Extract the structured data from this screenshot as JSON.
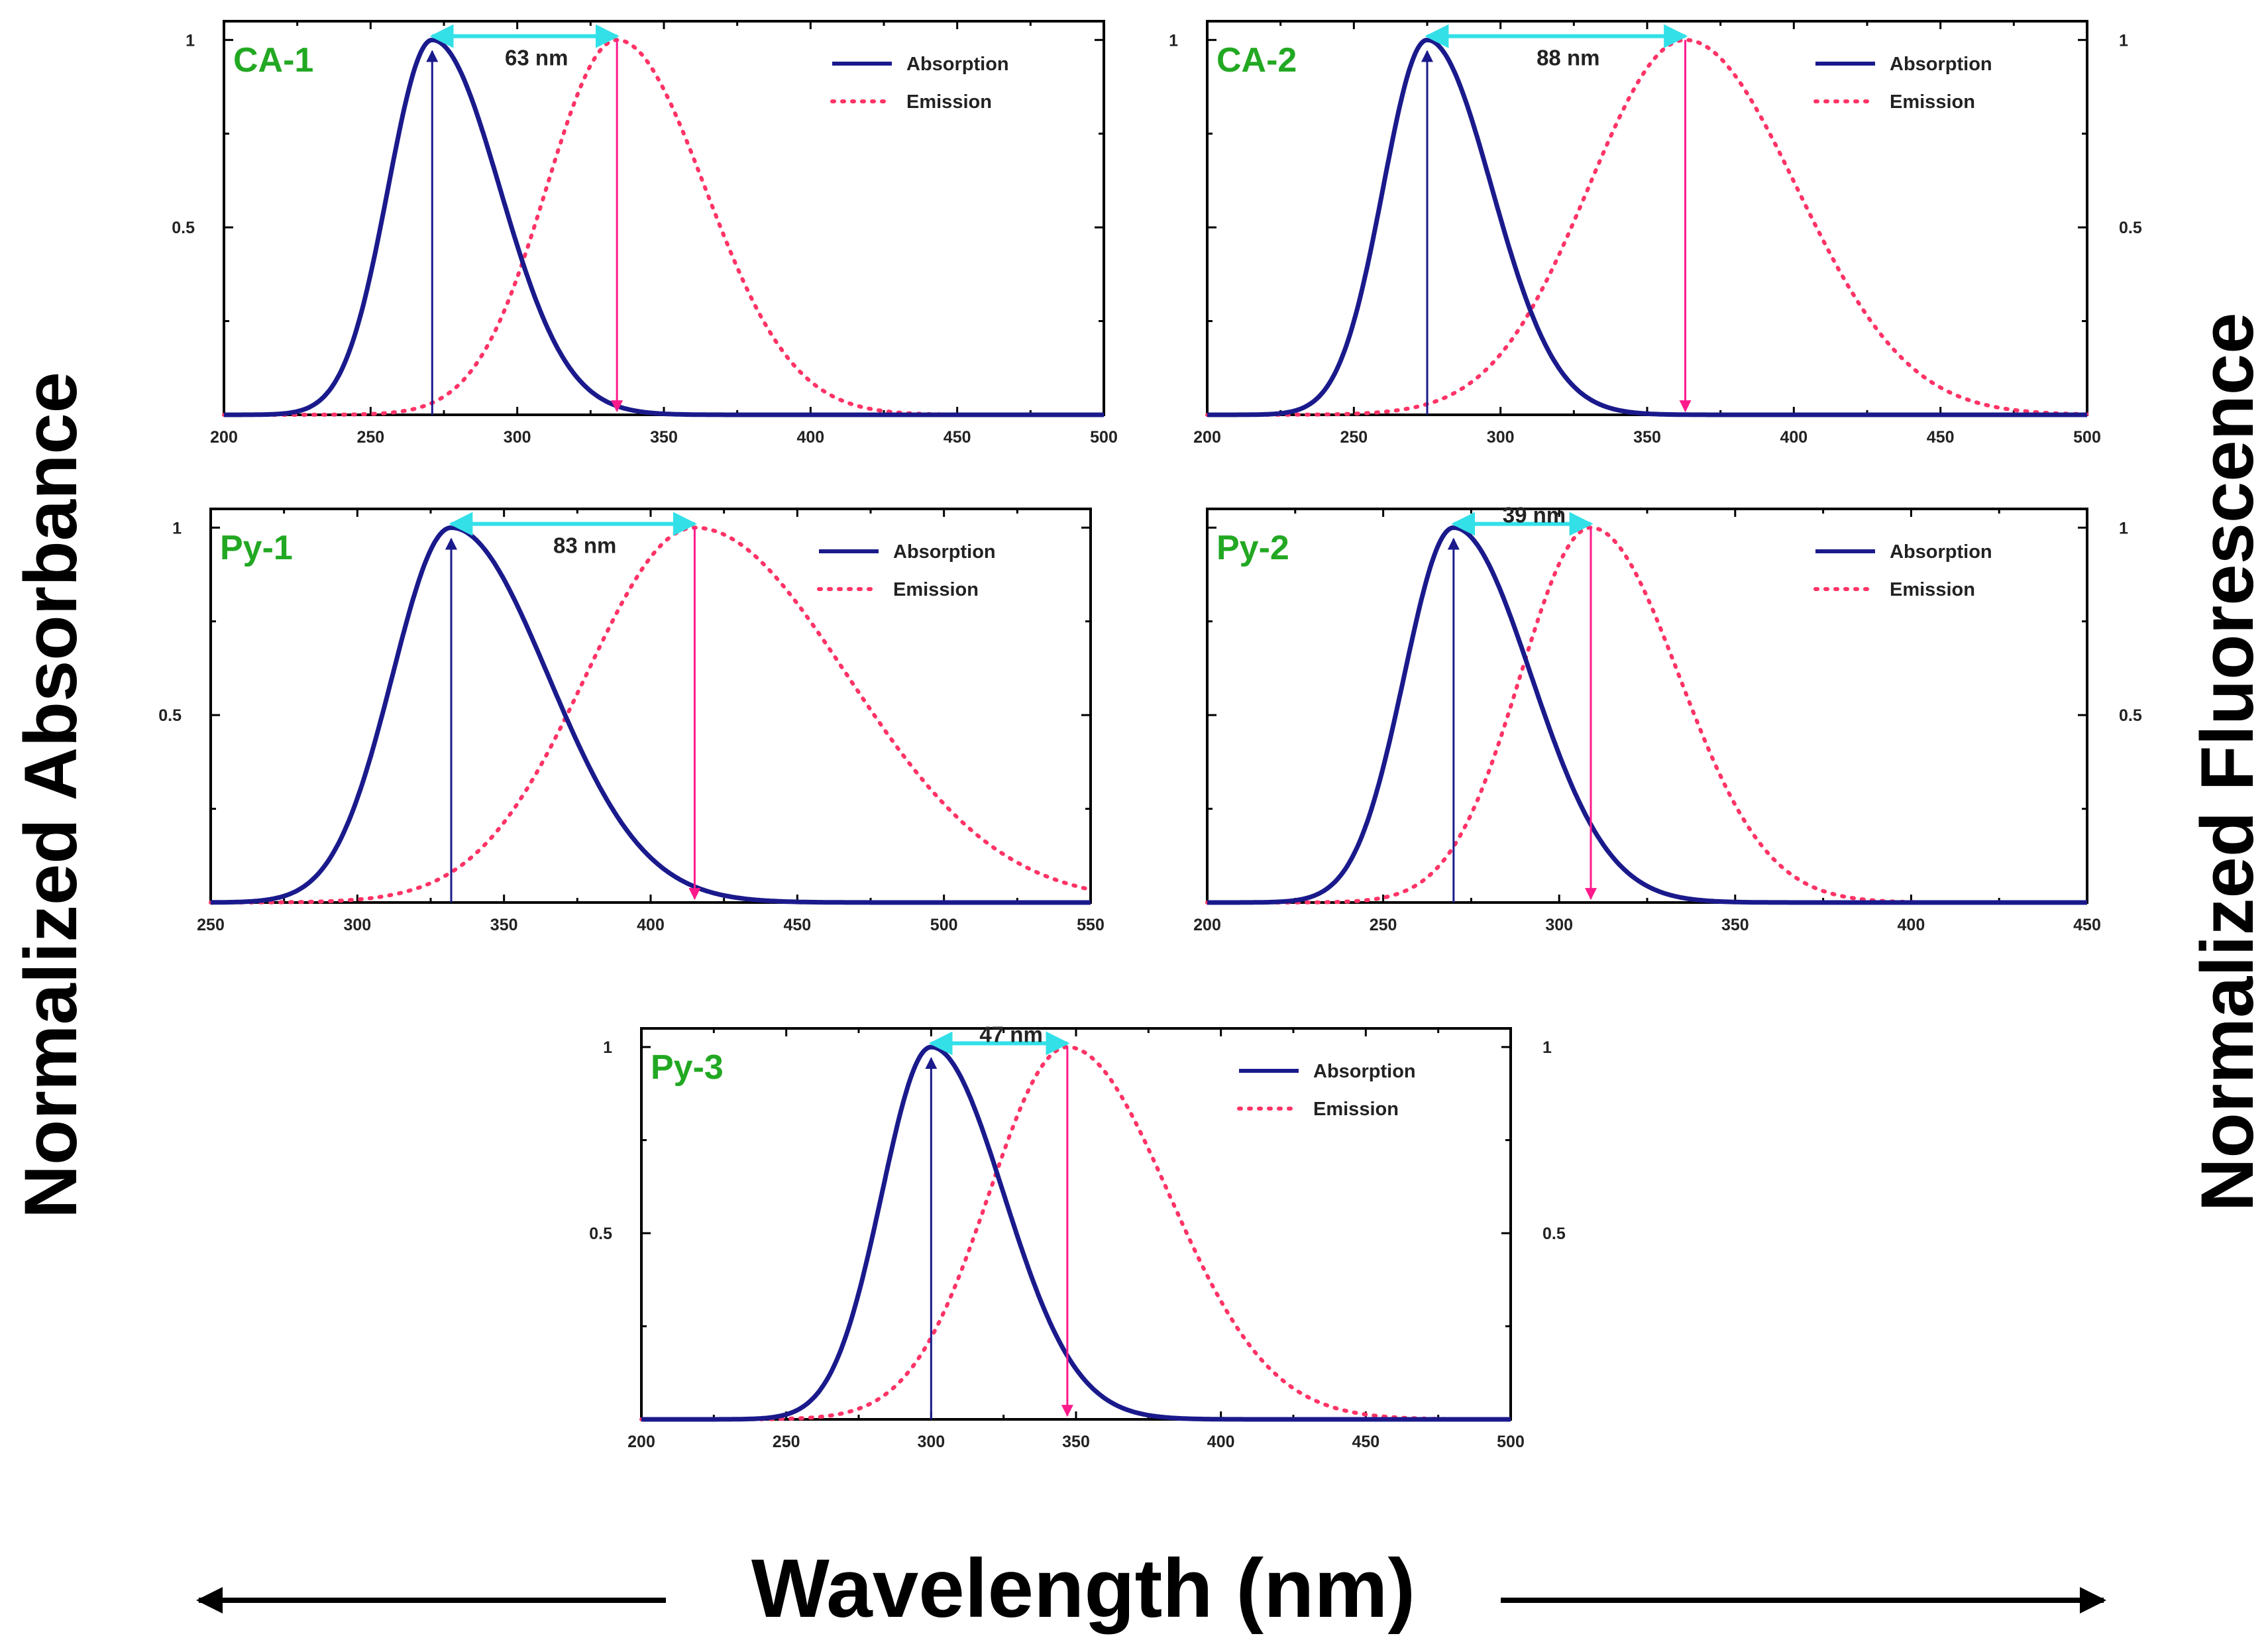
{
  "figure": {
    "y_label_left": "Normalized Absorbance",
    "y_label_right": "Normalized Fluorescence",
    "x_label": "Wavelength (nm)"
  },
  "colors": {
    "absorption": "#1a1a8c",
    "emission": "#ff3366",
    "arrow_up": "#1a1a8c",
    "arrow_down": "#ff1a8c",
    "stokes_arrow": "#33e0e8",
    "title": "#22a822"
  },
  "chart_data": [
    {
      "type": "line",
      "title": "CA-1",
      "xlim": [
        200,
        500
      ],
      "xticks": [
        200,
        250,
        300,
        350,
        400,
        450,
        500
      ],
      "ylim": [
        0,
        1.05
      ],
      "yticks_left": [
        0.5,
        1
      ],
      "yticks_right": [],
      "legend": [
        "Absorption",
        "Emission"
      ],
      "series": [
        {
          "name": "Absorption",
          "peak_nm": 271,
          "sigma_left": 15,
          "sigma_right": 23
        },
        {
          "name": "Emission",
          "peak_nm": 334,
          "sigma_left": 24,
          "sigma_right": 30
        }
      ],
      "abs_max_nm": 271,
      "em_max_nm": 334,
      "stokes_shift_label": "63 nm"
    },
    {
      "type": "line",
      "title": "CA-2",
      "xlim": [
        200,
        500
      ],
      "xticks": [
        200,
        250,
        300,
        350,
        400,
        450,
        500
      ],
      "ylim": [
        0,
        1.05
      ],
      "yticks_left": [
        1
      ],
      "yticks_right": [
        0.5,
        1
      ],
      "legend": [
        "Absorption",
        "Emission"
      ],
      "series": [
        {
          "name": "Absorption",
          "peak_nm": 275,
          "sigma_left": 15,
          "sigma_right": 22
        },
        {
          "name": "Emission",
          "peak_nm": 363,
          "sigma_left": 33,
          "sigma_right": 38
        }
      ],
      "abs_max_nm": 275,
      "em_max_nm": 363,
      "stokes_shift_label": "88 nm"
    },
    {
      "type": "line",
      "title": "Py-1",
      "xlim": [
        250,
        550
      ],
      "xticks": [
        250,
        300,
        350,
        400,
        450,
        500,
        550
      ],
      "ylim": [
        0,
        1.05
      ],
      "yticks_left": [
        0.5,
        1
      ],
      "yticks_right": [],
      "legend": [
        "Absorption",
        "Emission"
      ],
      "series": [
        {
          "name": "Absorption",
          "peak_nm": 332,
          "sigma_left": 20,
          "sigma_right": 33
        },
        {
          "name": "Emission",
          "peak_nm": 415,
          "sigma_left": 37,
          "sigma_right": 52
        }
      ],
      "abs_max_nm": 332,
      "em_max_nm": 415,
      "stokes_shift_label": "83 nm"
    },
    {
      "type": "line",
      "title": "Py-2",
      "xlim": [
        200,
        450
      ],
      "xticks": [
        200,
        250,
        300,
        350,
        400,
        450
      ],
      "ylim": [
        0,
        1.05
      ],
      "yticks_left": [],
      "yticks_right": [
        0.5,
        1
      ],
      "legend": [
        "Absorption",
        "Emission"
      ],
      "series": [
        {
          "name": "Absorption",
          "peak_nm": 270,
          "sigma_left": 14,
          "sigma_right": 22
        },
        {
          "name": "Emission",
          "peak_nm": 309,
          "sigma_left": 20,
          "sigma_right": 25
        }
      ],
      "abs_max_nm": 270,
      "em_max_nm": 309,
      "stokes_shift_label": "39 nm"
    },
    {
      "type": "line",
      "title": "Py-3",
      "xlim": [
        200,
        500
      ],
      "xticks": [
        200,
        250,
        300,
        350,
        400,
        450,
        500
      ],
      "ylim": [
        0,
        1.05
      ],
      "yticks_left": [
        0.5,
        1
      ],
      "yticks_right": [
        0.5,
        1
      ],
      "legend": [
        "Absorption",
        "Emission"
      ],
      "series": [
        {
          "name": "Absorption",
          "peak_nm": 300,
          "sigma_left": 17,
          "sigma_right": 25
        },
        {
          "name": "Emission",
          "peak_nm": 347,
          "sigma_left": 27,
          "sigma_right": 35
        }
      ],
      "abs_max_nm": 300,
      "em_max_nm": 347,
      "stokes_shift_label": "47 nm"
    }
  ]
}
